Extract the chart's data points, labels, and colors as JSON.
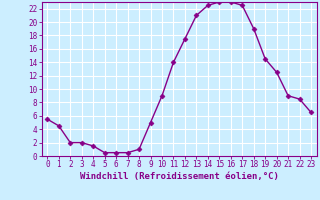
{
  "x": [
    0,
    1,
    2,
    3,
    4,
    5,
    6,
    7,
    8,
    9,
    10,
    11,
    12,
    13,
    14,
    15,
    16,
    17,
    18,
    19,
    20,
    21,
    22,
    23
  ],
  "y": [
    5.5,
    4.5,
    2.0,
    2.0,
    1.5,
    0.5,
    0.5,
    0.5,
    1.0,
    5.0,
    9.0,
    14.0,
    17.5,
    21.0,
    22.5,
    23.0,
    23.0,
    22.5,
    19.0,
    14.5,
    12.5,
    9.0,
    8.5,
    6.5
  ],
  "line_color": "#880088",
  "marker": "D",
  "marker_size": 2.5,
  "bg_color": "#cceeff",
  "grid_color": "#ffffff",
  "xlabel": "Windchill (Refroidissement éolien,°C)",
  "ylabel": "",
  "xlim": [
    -0.5,
    23.5
  ],
  "ylim": [
    0,
    23
  ],
  "yticks": [
    0,
    2,
    4,
    6,
    8,
    10,
    12,
    14,
    16,
    18,
    20,
    22
  ],
  "xticks": [
    0,
    1,
    2,
    3,
    4,
    5,
    6,
    7,
    8,
    9,
    10,
    11,
    12,
    13,
    14,
    15,
    16,
    17,
    18,
    19,
    20,
    21,
    22,
    23
  ],
  "tick_color": "#880088",
  "font_size": 5.5,
  "xlabel_fontsize": 6.5
}
